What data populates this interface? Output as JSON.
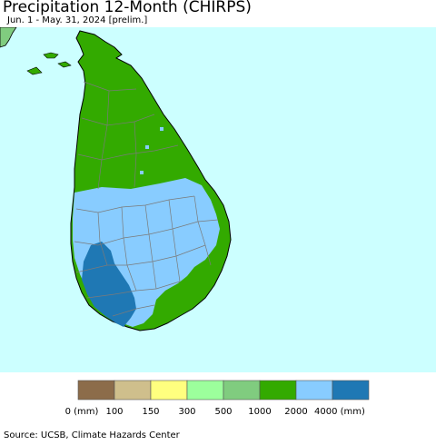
{
  "header": {
    "title": "Precipitation 12-Month (CHIRPS)",
    "subtitle": "Jun. 1 - May. 31, 2024 [prelim.]"
  },
  "map": {
    "region": "Sri Lanka",
    "ocean_color": "#ccffff",
    "outline_color": "#000000",
    "boundary_color": "#808080",
    "zones": [
      {
        "id": "northern-dry-zone",
        "category": "1000-2000",
        "color": "#33aa00"
      },
      {
        "id": "eastern-coastal-belt",
        "category": "1000-2000",
        "color": "#33aa00"
      },
      {
        "id": "central-wet-zone",
        "category": "2000-4000",
        "color": "#88ccff"
      },
      {
        "id": "southwest-wet-zone",
        "category": "4000+",
        "color": "#1f78b4"
      },
      {
        "id": "mainland-india-corner",
        "category": "500-1000",
        "color": "#80cc7f"
      }
    ]
  },
  "legend": {
    "colors": [
      "#8c6c4a",
      "#cfbf8c",
      "#ffff7f",
      "#9cff9c",
      "#80cc7f",
      "#33aa00",
      "#88ccff",
      "#1f78b4"
    ],
    "labels": [
      "0 (mm)",
      "100",
      "150",
      "300",
      "500",
      "1000",
      "2000",
      "4000 (mm)"
    ]
  },
  "footer": {
    "source": "Source: UCSB, Climate Hazards Center"
  }
}
